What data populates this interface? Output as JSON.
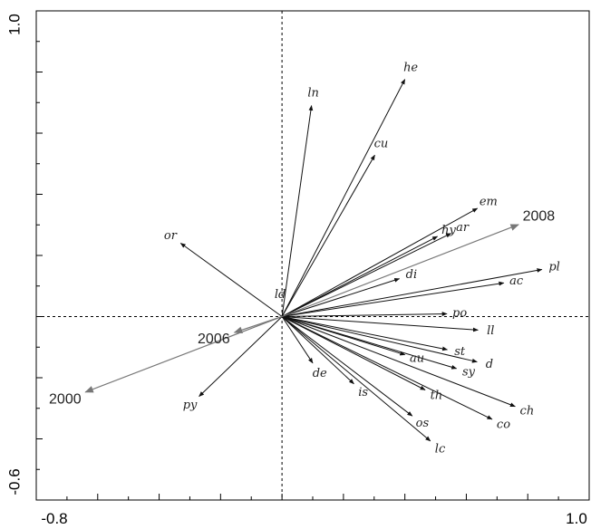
{
  "chart_data": {
    "type": "biplot",
    "xlim": [
      -0.8,
      1.0
    ],
    "ylim": [
      -0.6,
      1.0
    ],
    "axis_labels": {
      "x_min": "-0.8",
      "x_max": "1.0",
      "y_min": "-0.6",
      "y_max": "1.0"
    },
    "zero_lines": "dashed",
    "species_vectors": [
      {
        "label": "ln",
        "x": 0.096,
        "y": 0.69
      },
      {
        "label": "he",
        "x": 0.4,
        "y": 0.776
      },
      {
        "label": "cu",
        "x": 0.302,
        "y": 0.528
      },
      {
        "label": "em",
        "x": 0.636,
        "y": 0.354
      },
      {
        "label": "hy",
        "x": 0.506,
        "y": 0.262
      },
      {
        "label": "ar",
        "x": 0.55,
        "y": 0.272
      },
      {
        "label": "pl",
        "x": 0.846,
        "y": 0.154
      },
      {
        "label": "ac",
        "x": 0.722,
        "y": 0.11
      },
      {
        "label": "di",
        "x": 0.382,
        "y": 0.124
      },
      {
        "label": "po",
        "x": 0.537,
        "y": 0.009
      },
      {
        "label": "ll",
        "x": 0.638,
        "y": -0.044
      },
      {
        "label": "st",
        "x": 0.538,
        "y": -0.108
      },
      {
        "label": "d",
        "x": 0.635,
        "y": -0.148
      },
      {
        "label": "sy",
        "x": 0.568,
        "y": -0.17
      },
      {
        "label": "au",
        "x": 0.4,
        "y": -0.125
      },
      {
        "label": "ch",
        "x": 0.759,
        "y": -0.294
      },
      {
        "label": "co",
        "x": 0.684,
        "y": -0.336
      },
      {
        "label": "th",
        "x": 0.466,
        "y": -0.24
      },
      {
        "label": "os",
        "x": 0.424,
        "y": -0.325
      },
      {
        "label": "lc",
        "x": 0.483,
        "y": -0.407
      },
      {
        "label": "is",
        "x": 0.234,
        "y": -0.22
      },
      {
        "label": "de",
        "x": 0.1,
        "y": -0.152
      },
      {
        "label": "py",
        "x": -0.27,
        "y": -0.261
      },
      {
        "label": "or",
        "x": -0.33,
        "y": 0.24
      },
      {
        "label": "ld",
        "x": 0.0,
        "y": 0.0
      }
    ],
    "sample_vectors": [
      {
        "label": "2008",
        "x": 0.77,
        "y": 0.301
      },
      {
        "label": "2006",
        "x": -0.155,
        "y": -0.052
      },
      {
        "label": "2000",
        "x": -0.64,
        "y": -0.247
      }
    ]
  }
}
